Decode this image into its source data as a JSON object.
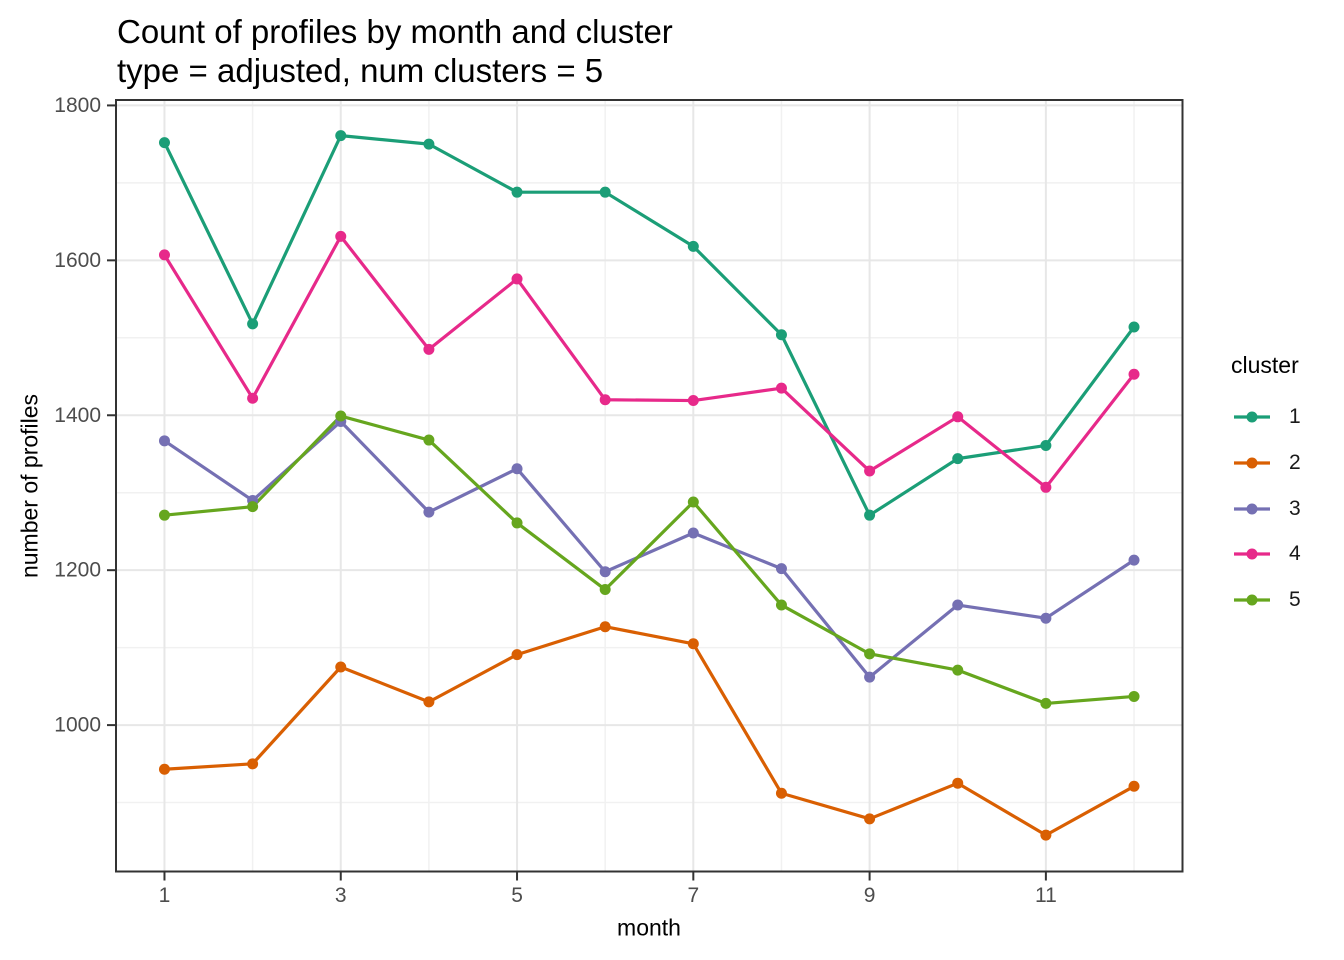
{
  "page": {
    "title": "Count of profiles by month and cluster",
    "subtitle": "type = adjusted, num clusters = 5"
  },
  "chart_data": {
    "type": "line",
    "title": "Count of profiles by month and cluster",
    "subtitle": "type = adjusted, num clusters = 5",
    "xlabel": "month",
    "ylabel": "number of profiles",
    "legend_title": "cluster",
    "legend_position": "right",
    "grid": true,
    "x": [
      1,
      2,
      3,
      4,
      5,
      6,
      7,
      8,
      9,
      10,
      11,
      12
    ],
    "x_major_ticks": [
      1,
      3,
      5,
      7,
      9,
      11
    ],
    "x_minor_gridlines": [
      2,
      4,
      6,
      8,
      10,
      12
    ],
    "y_major_ticks": [
      1000,
      1200,
      1400,
      1600,
      1800
    ],
    "y_minor_gridlines": [
      900,
      1100,
      1300,
      1500,
      1700
    ],
    "xlim": [
      0.45,
      12.55
    ],
    "ylim": [
      811,
      1807
    ],
    "series": [
      {
        "name": "1",
        "color": "#1B9E77",
        "values": [
          1752,
          1518,
          1761,
          1750,
          1688,
          1688,
          1618,
          1504,
          1271,
          1344,
          1361,
          1514
        ]
      },
      {
        "name": "2",
        "color": "#D95F02",
        "values": [
          943,
          950,
          1075,
          1030,
          1091,
          1127,
          1105,
          912,
          879,
          925,
          858,
          921
        ]
      },
      {
        "name": "3",
        "color": "#7570B3",
        "values": [
          1367,
          1290,
          1392,
          1275,
          1331,
          1198,
          1248,
          1202,
          1062,
          1155,
          1138,
          1213
        ]
      },
      {
        "name": "4",
        "color": "#E7298A",
        "values": [
          1607,
          1422,
          1631,
          1485,
          1576,
          1420,
          1419,
          1435,
          1328,
          1398,
          1307,
          1453
        ]
      },
      {
        "name": "5",
        "color": "#66A61E",
        "values": [
          1271,
          1282,
          1399,
          1368,
          1261,
          1175,
          1288,
          1155,
          1092,
          1071,
          1028,
          1037
        ]
      }
    ]
  },
  "theme": {
    "background": "#ffffff",
    "panel_border": "#333333",
    "grid_major": "#e7e7e7",
    "grid_minor": "#f1f1f1",
    "tick_color": "#333333",
    "tick_label_color": "#4d4d4d",
    "text_color": "#000000"
  }
}
